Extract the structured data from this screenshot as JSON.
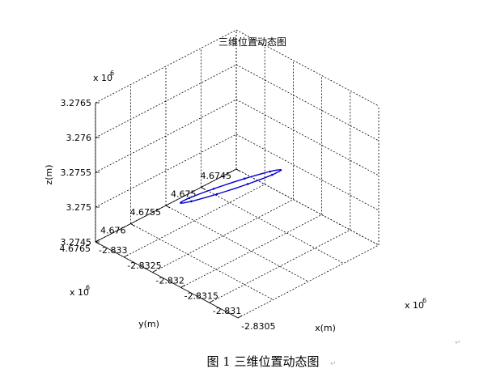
{
  "chart_data": {
    "type": "line3d",
    "title": "三维位置动态图",
    "xlabel": "x(m)",
    "ylabel": "y(m)",
    "zlabel": "z(m)",
    "x_ticks": [
      "-2.833",
      "-2.8325",
      "-2.832",
      "-2.8315",
      "-2.831",
      "-2.8305"
    ],
    "y_ticks": [
      "4.6745",
      "4.675",
      "4.6755",
      "4.676",
      "4.6765"
    ],
    "z_ticks": [
      "3.2745",
      "3.275",
      "3.2755",
      "3.276",
      "3.2765"
    ],
    "x_exponent": "x 10",
    "y_exponent": "x 10",
    "z_exponent": "x 10",
    "exponent_power": "6",
    "xlim": [
      -2.833,
      -2.8305
    ],
    "ylim": [
      4.6745,
      4.6765
    ],
    "zlim": [
      3.2745,
      3.2765
    ],
    "grid": true,
    "series_color": "#0000cc",
    "trajectory_note": "narrow closed loop from (-2.8328, 4.67545, 3.2746) to (-2.8308, 4.67565, 3.27605)"
  },
  "caption": "图 1  三维位置动态图",
  "caption_mark": "↵",
  "margin_mark": "↵"
}
